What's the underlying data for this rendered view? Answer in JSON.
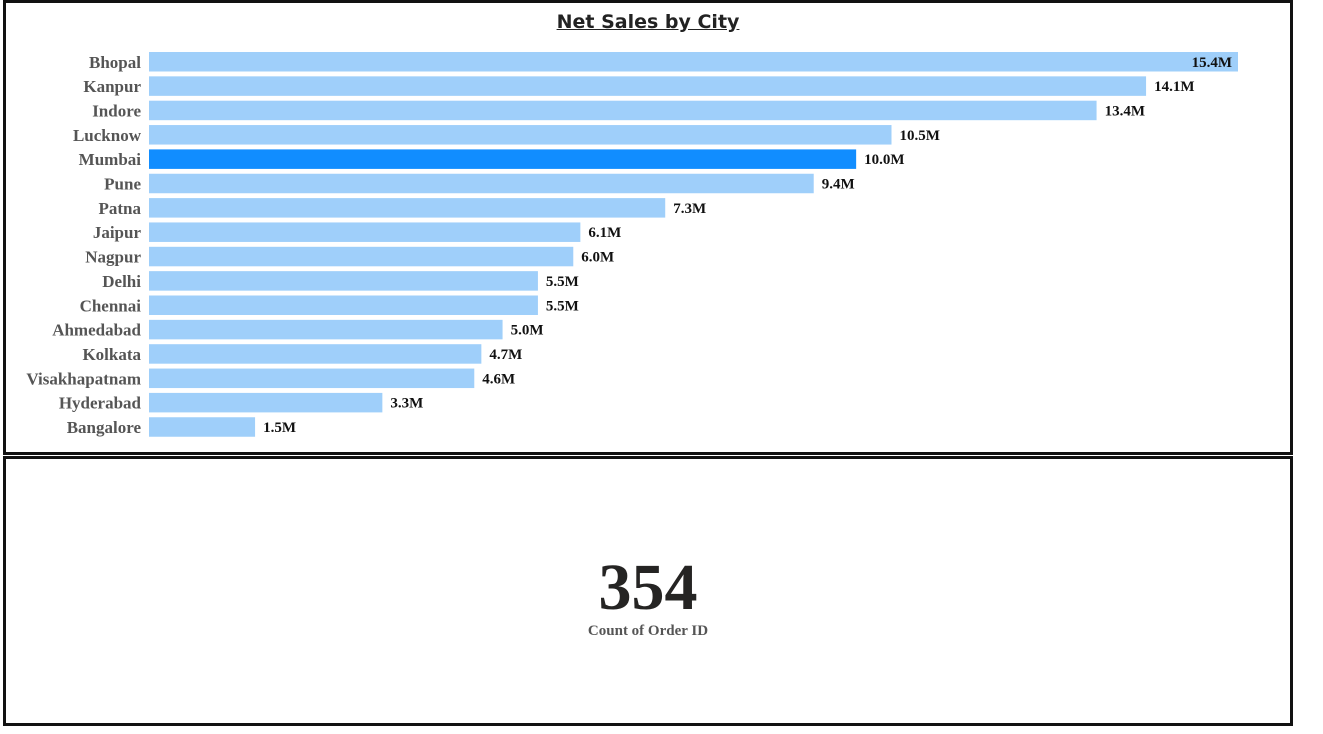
{
  "chart_data": {
    "type": "bar",
    "orientation": "horizontal",
    "title": "Net Sales by City",
    "categories": [
      "Bhopal",
      "Kanpur",
      "Indore",
      "Lucknow",
      "Mumbai",
      "Pune",
      "Patna",
      "Jaipur",
      "Nagpur",
      "Delhi",
      "Chennai",
      "Ahmedabad",
      "Kolkata",
      "Visakhapatnam",
      "Hyderabad",
      "Bangalore"
    ],
    "values": [
      15.4,
      14.1,
      13.4,
      10.5,
      10.0,
      9.4,
      7.3,
      6.1,
      6.0,
      5.5,
      5.5,
      5.0,
      4.7,
      4.6,
      3.3,
      1.5
    ],
    "value_labels": [
      "15.4M",
      "14.1M",
      "13.4M",
      "10.5M",
      "10.0M",
      "9.4M",
      "7.3M",
      "6.1M",
      "6.0M",
      "5.5M",
      "5.5M",
      "5.0M",
      "4.7M",
      "4.6M",
      "3.3M",
      "1.5M"
    ],
    "unit": "M",
    "xlim": [
      0,
      15.4
    ],
    "highlighted_category": "Mumbai",
    "colors": {
      "bar": "#9fcffa",
      "highlight": "#118dff"
    },
    "grid": false,
    "legend": "none"
  },
  "card": {
    "value": "354",
    "label": "Count of Order ID"
  }
}
